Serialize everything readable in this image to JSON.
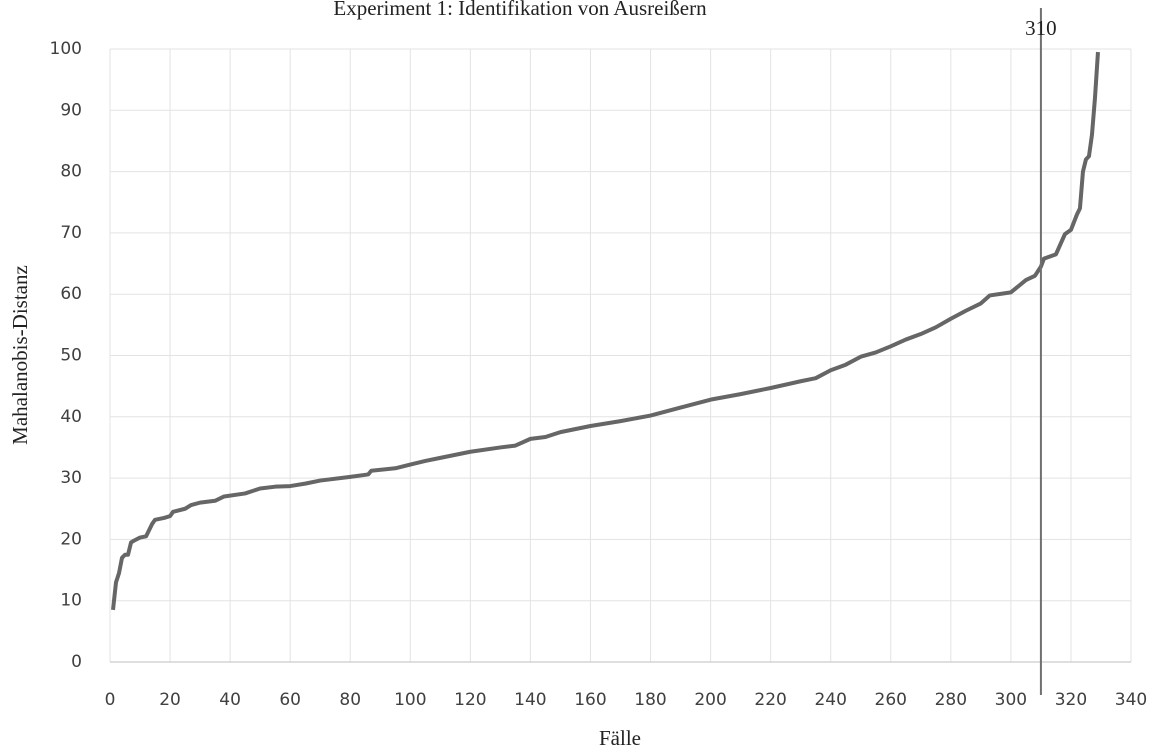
{
  "chart_data": {
    "type": "line",
    "title": "Experiment 1: Identifikation von Ausreißern",
    "xlabel": "Fälle",
    "ylabel": "Mahalanobis-Distanz",
    "vline": 310,
    "x": [
      1,
      2,
      3,
      4,
      5,
      6,
      7,
      8,
      10,
      12,
      14,
      15,
      18,
      20,
      21,
      25,
      27,
      30,
      35,
      38,
      45,
      50,
      55,
      60,
      65,
      70,
      80,
      86,
      87,
      95,
      100,
      105,
      110,
      120,
      130,
      135,
      140,
      145,
      150,
      160,
      170,
      180,
      190,
      200,
      210,
      220,
      230,
      235,
      240,
      245,
      250,
      255,
      260,
      265,
      270,
      275,
      280,
      285,
      290,
      293,
      300,
      305,
      308,
      310,
      311,
      315,
      318,
      320,
      322,
      323,
      324,
      325,
      326,
      327,
      328,
      329
    ],
    "series": [
      {
        "name": "Mahalanobis-Distanz",
        "color": "#666666",
        "values": [
          8.5,
          13,
          14.5,
          17,
          17.5,
          17.5,
          19.5,
          19.8,
          20.3,
          20.5,
          22.5,
          23.2,
          23.5,
          23.8,
          24.5,
          25,
          25.6,
          26,
          26.3,
          27,
          27.5,
          28.3,
          28.6,
          28.7,
          29.1,
          29.6,
          30.2,
          30.6,
          31.2,
          31.6,
          32.2,
          32.8,
          33.3,
          34.3,
          35,
          35.3,
          36.4,
          36.7,
          37.5,
          38.5,
          39.3,
          40.2,
          41.5,
          42.8,
          43.7,
          44.7,
          45.8,
          46.3,
          47.6,
          48.5,
          49.8,
          50.5,
          51.5,
          52.6,
          53.5,
          54.6,
          56,
          57.3,
          58.5,
          59.8,
          60.3,
          62.3,
          63,
          64.5,
          65.8,
          66.5,
          69.8,
          70.5,
          73,
          74,
          80,
          82,
          82.5,
          86,
          92,
          99.5
        ]
      }
    ],
    "xlim": [
      0,
      340
    ],
    "xticks": [
      0,
      20,
      40,
      60,
      80,
      100,
      120,
      140,
      160,
      180,
      200,
      220,
      240,
      260,
      280,
      300,
      320,
      340
    ],
    "ylim": [
      0,
      100
    ],
    "yticks": [
      0,
      10,
      20,
      30,
      40,
      50,
      60,
      70,
      80,
      90,
      100
    ],
    "grid": true
  }
}
